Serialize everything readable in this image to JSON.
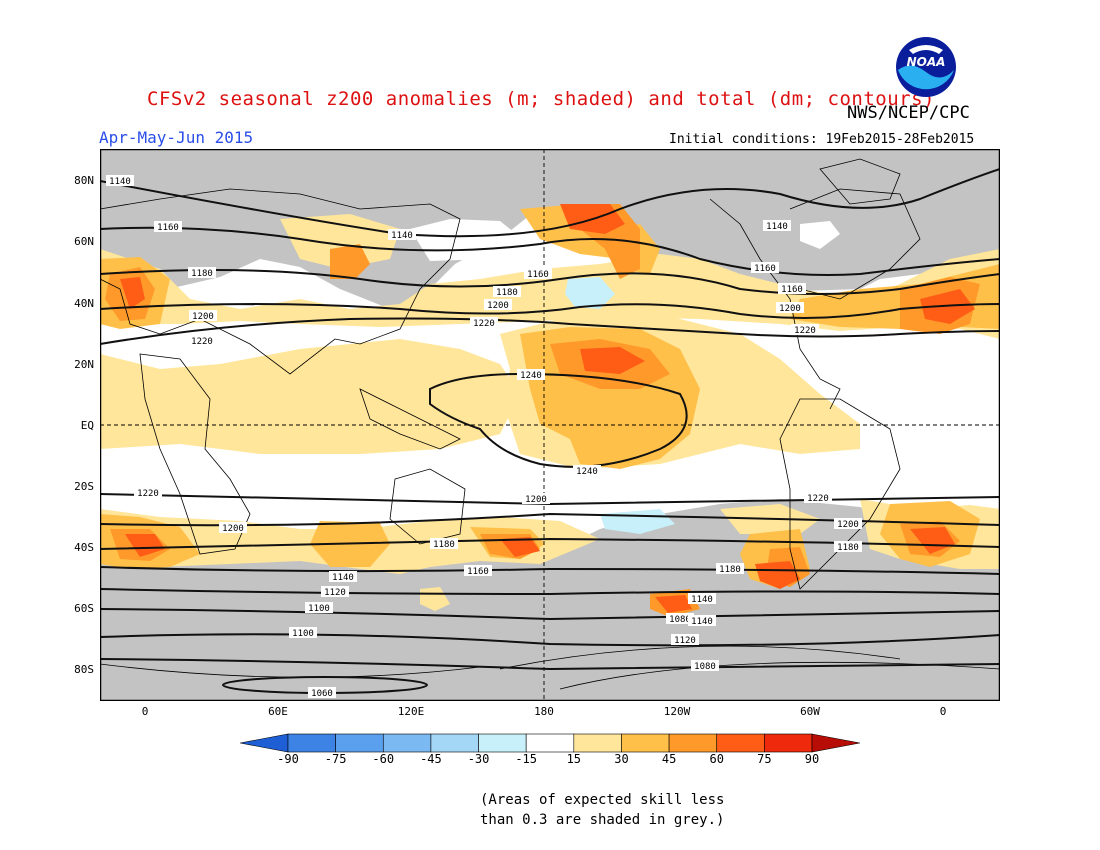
{
  "header": {
    "title": "CFSv2 seasonal z200 anomalies (m; shaded) and total (dm; contours)",
    "agency": "NWS/NCEP/CPC",
    "season": "Apr-May-Jun 2015",
    "initial_conditions": "Initial conditions: 19Feb2015-28Feb2015",
    "logo_text": "NOAA"
  },
  "map": {
    "lat_labels": [
      "80N",
      "60N",
      "40N",
      "20N",
      "EQ",
      "20S",
      "40S",
      "60S",
      "80S"
    ],
    "lon_labels": [
      "0",
      "60E",
      "120E",
      "180",
      "120W",
      "60W",
      "0"
    ],
    "contour_labels": [
      "1140",
      "1160",
      "1180",
      "1200",
      "1220",
      "1140",
      "1180",
      "1200",
      "1220",
      "1160",
      "1140",
      "1160",
      "1160",
      "1200",
      "1220",
      "1240",
      "1240",
      "1220",
      "1220",
      "1200",
      "1200",
      "1180",
      "1200",
      "1180",
      "1140",
      "1160",
      "1180",
      "1140",
      "1120",
      "1100",
      "1080",
      "1140",
      "1120",
      "1100",
      "1080",
      "1060"
    ]
  },
  "colorbar": {
    "ticks": [
      "-90",
      "-75",
      "-60",
      "-45",
      "-30",
      "-15",
      "15",
      "30",
      "45",
      "60",
      "75",
      "90"
    ],
    "colors": [
      "#1e5fd6",
      "#3d83e6",
      "#5aa0ee",
      "#7bb9f2",
      "#a4d6f5",
      "#c8f0fa",
      "#ffffff",
      "#ffe69a",
      "#ffc04a",
      "#ff9a2a",
      "#ff5c16",
      "#ef2a0c",
      "#b80c06"
    ]
  },
  "note": {
    "line1": "(Areas of expected skill less",
    "line2": "than 0.3 are shaded in grey.)"
  }
}
